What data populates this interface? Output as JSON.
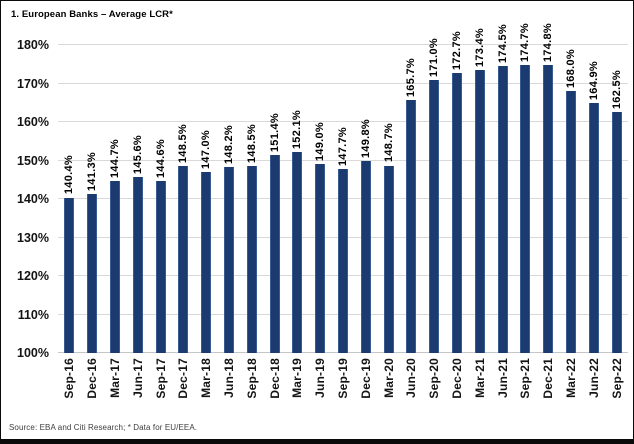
{
  "header": {
    "title": "1. European Banks – Average LCR*"
  },
  "footer": {
    "source": "Source: EBA and Citi Research; * Data for EU/EEA."
  },
  "colors": {
    "bar": "#1A3A70",
    "bar_edge": "#3a5a92",
    "gridline": "#d9d9d9",
    "text": "#141414"
  },
  "chart_data": {
    "type": "bar",
    "title": "1. European Banks – Average LCR*",
    "categories": [
      "Sep-16",
      "Dec-16",
      "Mar-17",
      "Jun-17",
      "Sep-17",
      "Dec-17",
      "Mar-18",
      "Jun-18",
      "Sep-18",
      "Dec-18",
      "Mar-19",
      "Jun-19",
      "Sep-19",
      "Dec-19",
      "Mar-20",
      "Jun-20",
      "Sep-20",
      "Dec-20",
      "Mar-21",
      "Jun-21",
      "Sep-21",
      "Dec-21",
      "Mar-22",
      "Jun-22",
      "Sep-22"
    ],
    "values": [
      140.4,
      141.3,
      144.7,
      145.6,
      144.6,
      148.5,
      147.0,
      148.2,
      148.5,
      151.4,
      152.1,
      149.0,
      147.7,
      149.8,
      148.7,
      165.7,
      171.0,
      172.7,
      173.4,
      174.5,
      174.7,
      174.8,
      168.0,
      164.9,
      162.5
    ],
    "value_labels": [
      "140.4%",
      "141.3%",
      "144.7%",
      "145.6%",
      "144.6%",
      "148.5%",
      "147.0%",
      "148.2%",
      "148.5%",
      "151.4%",
      "152.1%",
      "149.0%",
      "147.7%",
      "149.8%",
      "148.7%",
      "165.7%",
      "171.0%",
      "172.7%",
      "173.4%",
      "174.5%",
      "174.7%",
      "174.8%",
      "168.0%",
      "164.9%",
      "162.5%"
    ],
    "xlabel": "",
    "ylabel": "",
    "ylim": [
      100,
      180
    ],
    "y_ticks": [
      {
        "value": 100,
        "label": "100%"
      },
      {
        "value": 110,
        "label": "110%"
      },
      {
        "value": 120,
        "label": "120%"
      },
      {
        "value": 130,
        "label": "130%"
      },
      {
        "value": 140,
        "label": "140%"
      },
      {
        "value": 150,
        "label": "150%"
      },
      {
        "value": 160,
        "label": "160%"
      },
      {
        "value": 170,
        "label": "170%"
      },
      {
        "value": 180,
        "label": "180%"
      }
    ],
    "grid": true,
    "legend": false,
    "label_rotation_degrees": 90
  }
}
